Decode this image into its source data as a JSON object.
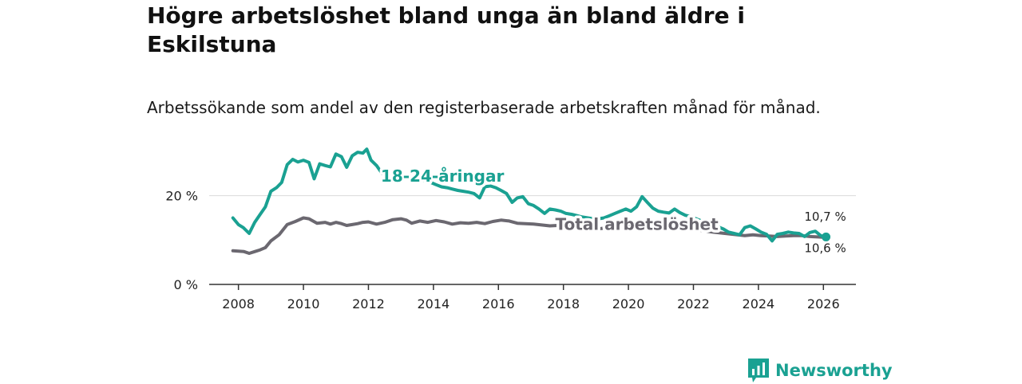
{
  "title": "Högre arbetslöshet bland unga än bland äldre i Eskilstuna",
  "subtitle": "Arbetssökande som andel av den registerbaserade arbetskraften månad för månad.",
  "brand": {
    "name": "Newsworthy",
    "icon": "newsworthy-logo-icon"
  },
  "colors": {
    "youth": "#1aa192",
    "total": "#6b6870",
    "axis": "#333333",
    "grid": "#d9d9d9"
  },
  "chart_data": {
    "type": "line",
    "title": "Högre arbetslöshet bland unga än bland äldre i Eskilstuna",
    "xlabel": "",
    "ylabel": "",
    "xlim": [
      2007.1,
      2027.0
    ],
    "ylim": [
      0,
      30
    ],
    "x_ticks": [
      {
        "value": 2008,
        "label": "2008"
      },
      {
        "value": 2010,
        "label": "2010"
      },
      {
        "value": 2012,
        "label": "2012"
      },
      {
        "value": 2014,
        "label": "2014"
      },
      {
        "value": 2016,
        "label": "2016"
      },
      {
        "value": 2018,
        "label": "2018"
      },
      {
        "value": 2020,
        "label": "2020"
      },
      {
        "value": 2022,
        "label": "2022"
      },
      {
        "value": 2024,
        "label": "2024"
      },
      {
        "value": 2026,
        "label": "2026"
      }
    ],
    "y_ticks": [
      {
        "value": 0,
        "label": "0 %"
      },
      {
        "value": 20,
        "label": "20 %"
      }
    ],
    "grid": true,
    "series": [
      {
        "name": "18-24-åringar",
        "label": "18-24-åringar",
        "end_label": "10,7 %",
        "x": [
          2007.83,
          2008.0,
          2008.15,
          2008.33,
          2008.5,
          2008.67,
          2008.83,
          2009.0,
          2009.17,
          2009.33,
          2009.5,
          2009.67,
          2009.83,
          2010.0,
          2010.17,
          2010.33,
          2010.5,
          2010.67,
          2010.83,
          2011.0,
          2011.17,
          2011.33,
          2011.5,
          2011.67,
          2011.83,
          2011.95,
          2012.08,
          2012.25,
          2012.42,
          2012.58,
          2012.75,
          2012.92,
          2013.08,
          2013.25,
          2013.42,
          2013.58,
          2013.75,
          2013.92,
          2014.08,
          2014.25,
          2014.42,
          2014.58,
          2014.75,
          2014.92,
          2015.08,
          2015.25,
          2015.42,
          2015.58,
          2015.75,
          2015.92,
          2016.08,
          2016.25,
          2016.42,
          2016.58,
          2016.75,
          2016.92,
          2017.08,
          2017.25,
          2017.42,
          2017.58,
          2017.75,
          2017.92,
          2018.08,
          2018.25,
          2018.42,
          2018.58,
          2018.75,
          2018.92,
          2019.08,
          2019.25,
          2019.42,
          2019.58,
          2019.75,
          2019.92,
          2020.08,
          2020.25,
          2020.42,
          2020.58,
          2020.75,
          2020.92,
          2021.08,
          2021.25,
          2021.42,
          2021.58,
          2021.75,
          2021.92,
          2022.08,
          2022.25,
          2022.42,
          2022.58,
          2022.75,
          2022.92,
          2023.08,
          2023.25,
          2023.42,
          2023.58,
          2023.75,
          2023.92,
          2024.08,
          2024.25,
          2024.42,
          2024.58,
          2024.75,
          2024.92,
          2025.08,
          2025.25,
          2025.42,
          2025.58,
          2025.75,
          2025.92,
          2026.08
        ],
        "values": [
          15.0,
          13.5,
          12.8,
          11.5,
          14.0,
          15.8,
          17.5,
          21.0,
          21.8,
          23.0,
          27.0,
          28.2,
          27.6,
          28.0,
          27.5,
          23.8,
          27.2,
          26.8,
          26.5,
          29.4,
          28.8,
          26.4,
          29.0,
          29.8,
          29.6,
          30.5,
          28.0,
          26.8,
          25.0,
          25.8,
          24.8,
          24.5,
          24.2,
          24.0,
          23.8,
          23.6,
          23.3,
          23.0,
          22.5,
          22.0,
          21.8,
          21.5,
          21.2,
          21.0,
          20.8,
          20.5,
          19.5,
          22.0,
          22.2,
          21.8,
          21.2,
          20.5,
          18.5,
          19.5,
          19.8,
          18.2,
          17.8,
          17.0,
          16.0,
          17.0,
          16.8,
          16.5,
          16.0,
          15.8,
          15.5,
          15.2,
          15.0,
          14.8,
          14.8,
          15.0,
          15.5,
          16.0,
          16.5,
          17.0,
          16.5,
          17.5,
          19.8,
          18.5,
          17.2,
          16.5,
          16.3,
          16.1,
          17.0,
          16.2,
          15.6,
          15.3,
          14.8,
          14.3,
          13.8,
          13.8,
          13.0,
          12.5,
          11.8,
          11.5,
          11.2,
          12.8,
          13.2,
          12.5,
          11.8,
          11.3,
          9.8,
          11.3,
          11.5,
          11.8,
          11.6,
          11.5,
          10.8,
          11.7,
          12.0,
          11.0,
          10.7
        ]
      },
      {
        "name": "Total arbetslöshet",
        "label": "Total arbetslöshet",
        "end_label": "10,6 %",
        "x": [
          2007.83,
          2008.17,
          2008.33,
          2008.5,
          2008.67,
          2008.83,
          2009.0,
          2009.25,
          2009.5,
          2009.75,
          2010.0,
          2010.17,
          2010.42,
          2010.67,
          2010.83,
          2011.0,
          2011.17,
          2011.33,
          2011.5,
          2011.67,
          2011.83,
          2012.0,
          2012.25,
          2012.5,
          2012.75,
          2013.0,
          2013.17,
          2013.33,
          2013.58,
          2013.83,
          2014.08,
          2014.33,
          2014.58,
          2014.83,
          2015.08,
          2015.33,
          2015.58,
          2015.83,
          2016.08,
          2016.33,
          2016.58,
          2016.83,
          2017.08,
          2017.33,
          2017.58,
          2017.83,
          2018.08,
          2018.33,
          2018.58,
          2018.83,
          2019.08,
          2019.33,
          2019.58,
          2019.83,
          2020.08,
          2020.33,
          2020.58,
          2020.83,
          2021.08,
          2021.33,
          2021.58,
          2021.83,
          2022.08,
          2022.33,
          2022.58,
          2022.83,
          2023.08,
          2023.33,
          2023.58,
          2023.83,
          2024.08,
          2024.33,
          2024.58,
          2024.83,
          2025.08,
          2025.33,
          2025.58,
          2025.83,
          2026.08
        ],
        "values": [
          7.6,
          7.4,
          7.0,
          7.4,
          7.8,
          8.3,
          9.8,
          11.2,
          13.5,
          14.2,
          15.0,
          14.8,
          13.8,
          14.0,
          13.6,
          14.0,
          13.7,
          13.3,
          13.5,
          13.7,
          14.0,
          14.1,
          13.6,
          14.0,
          14.6,
          14.8,
          14.5,
          13.8,
          14.3,
          14.0,
          14.4,
          14.1,
          13.6,
          13.9,
          13.8,
          14.0,
          13.7,
          14.2,
          14.5,
          14.3,
          13.8,
          13.7,
          13.6,
          13.4,
          13.2,
          13.3,
          13.0,
          12.9,
          12.7,
          12.6,
          12.5,
          12.8,
          13.0,
          13.1,
          13.3,
          13.6,
          13.4,
          13.2,
          13.0,
          12.8,
          12.6,
          12.4,
          12.3,
          12.1,
          11.8,
          11.6,
          11.4,
          11.2,
          11.0,
          11.2,
          11.0,
          10.9,
          10.8,
          10.9,
          11.0,
          11.0,
          10.8,
          10.7,
          10.6
        ]
      }
    ]
  }
}
